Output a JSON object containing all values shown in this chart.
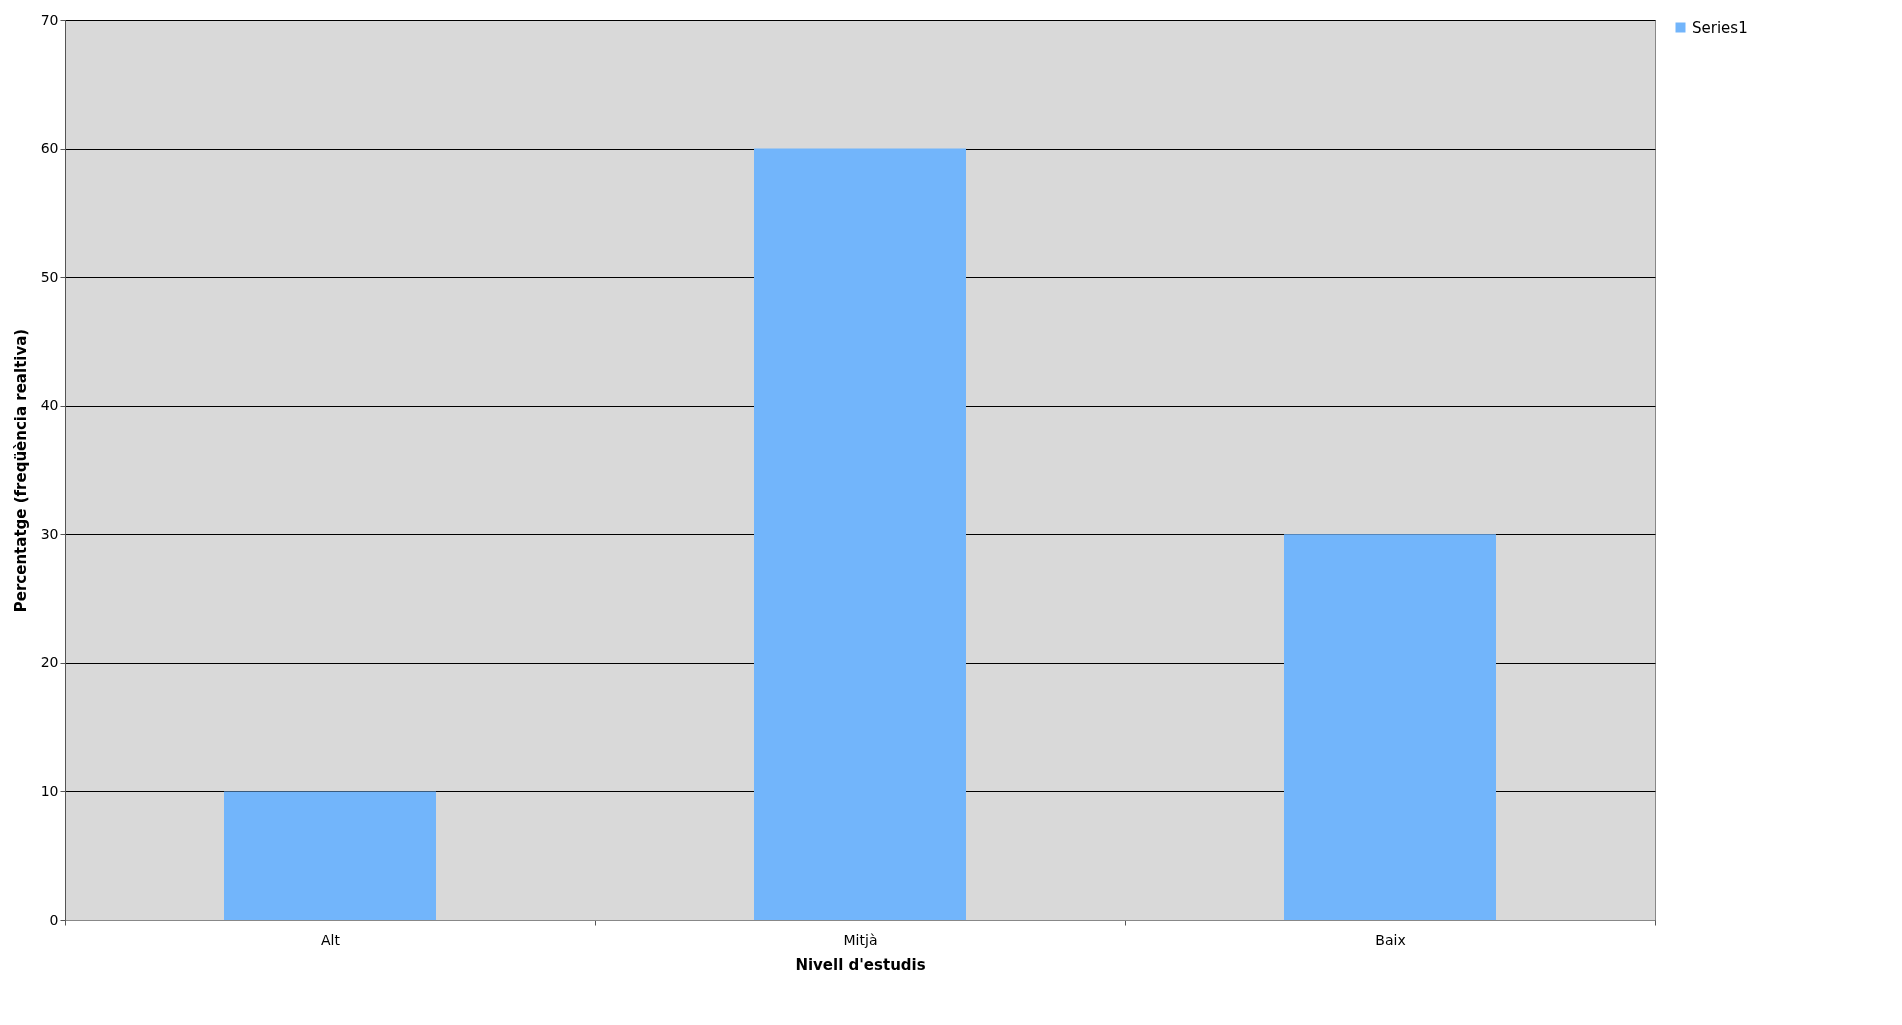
{
  "chart_data": {
    "type": "bar",
    "xlabel": "Nivell d'estudis",
    "ylabel": "Percentatge (freqüència realtiva)",
    "categories": [
      "Alt",
      "Mitjà",
      "Baix"
    ],
    "series": [
      {
        "name": "Series1",
        "color": "#72b5fb",
        "values": [
          10,
          60,
          30
        ]
      }
    ],
    "ylim": [
      0,
      70
    ],
    "yticks": [
      0,
      10,
      20,
      30,
      40,
      50,
      60,
      70
    ],
    "grid": "y",
    "legend": "right"
  }
}
